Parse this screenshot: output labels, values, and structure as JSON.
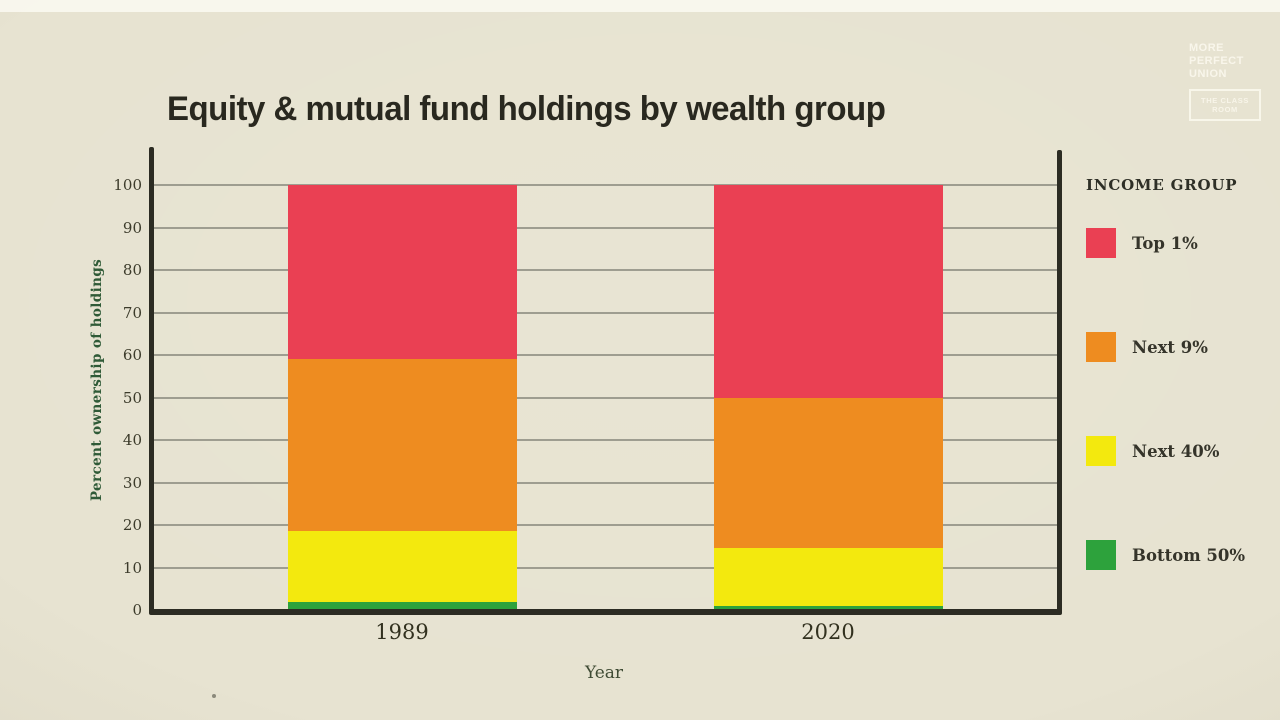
{
  "watermark": {
    "lines": [
      "MORE",
      "PERFECT",
      "UNION"
    ],
    "box_lines": [
      "THE CLASS",
      "ROOM"
    ]
  },
  "chart_data": {
    "type": "bar",
    "stacked": true,
    "title": "Equity & mutual fund holdings by wealth group",
    "xlabel": "Year",
    "ylabel": "Percent ownership of holdings",
    "categories": [
      "1989",
      "2020"
    ],
    "y_ticks": [
      0,
      10,
      20,
      30,
      40,
      50,
      60,
      70,
      80,
      90,
      100
    ],
    "ylim": [
      0,
      100
    ],
    "grid": true,
    "legend_title": "INCOME GROUP",
    "legend_position": "right",
    "series": [
      {
        "name": "Top 1%",
        "color": "#ea4053",
        "values": [
          41,
          50
        ]
      },
      {
        "name": "Next 9%",
        "color": "#ee8c20",
        "values": [
          40.5,
          35.5
        ]
      },
      {
        "name": "Next 40%",
        "color": "#f3e90e",
        "values": [
          16.5,
          13.5
        ]
      },
      {
        "name": "Bottom 50%",
        "color": "#2da23c",
        "values": [
          2,
          1
        ]
      }
    ]
  },
  "colors": {
    "background": "#e7e3d1",
    "axis": "#2c2c23",
    "gridline": "#85857a",
    "title_text": "#29281f",
    "axis_label_green": "#2f5a37",
    "tick_text": "#3c3b2b"
  }
}
